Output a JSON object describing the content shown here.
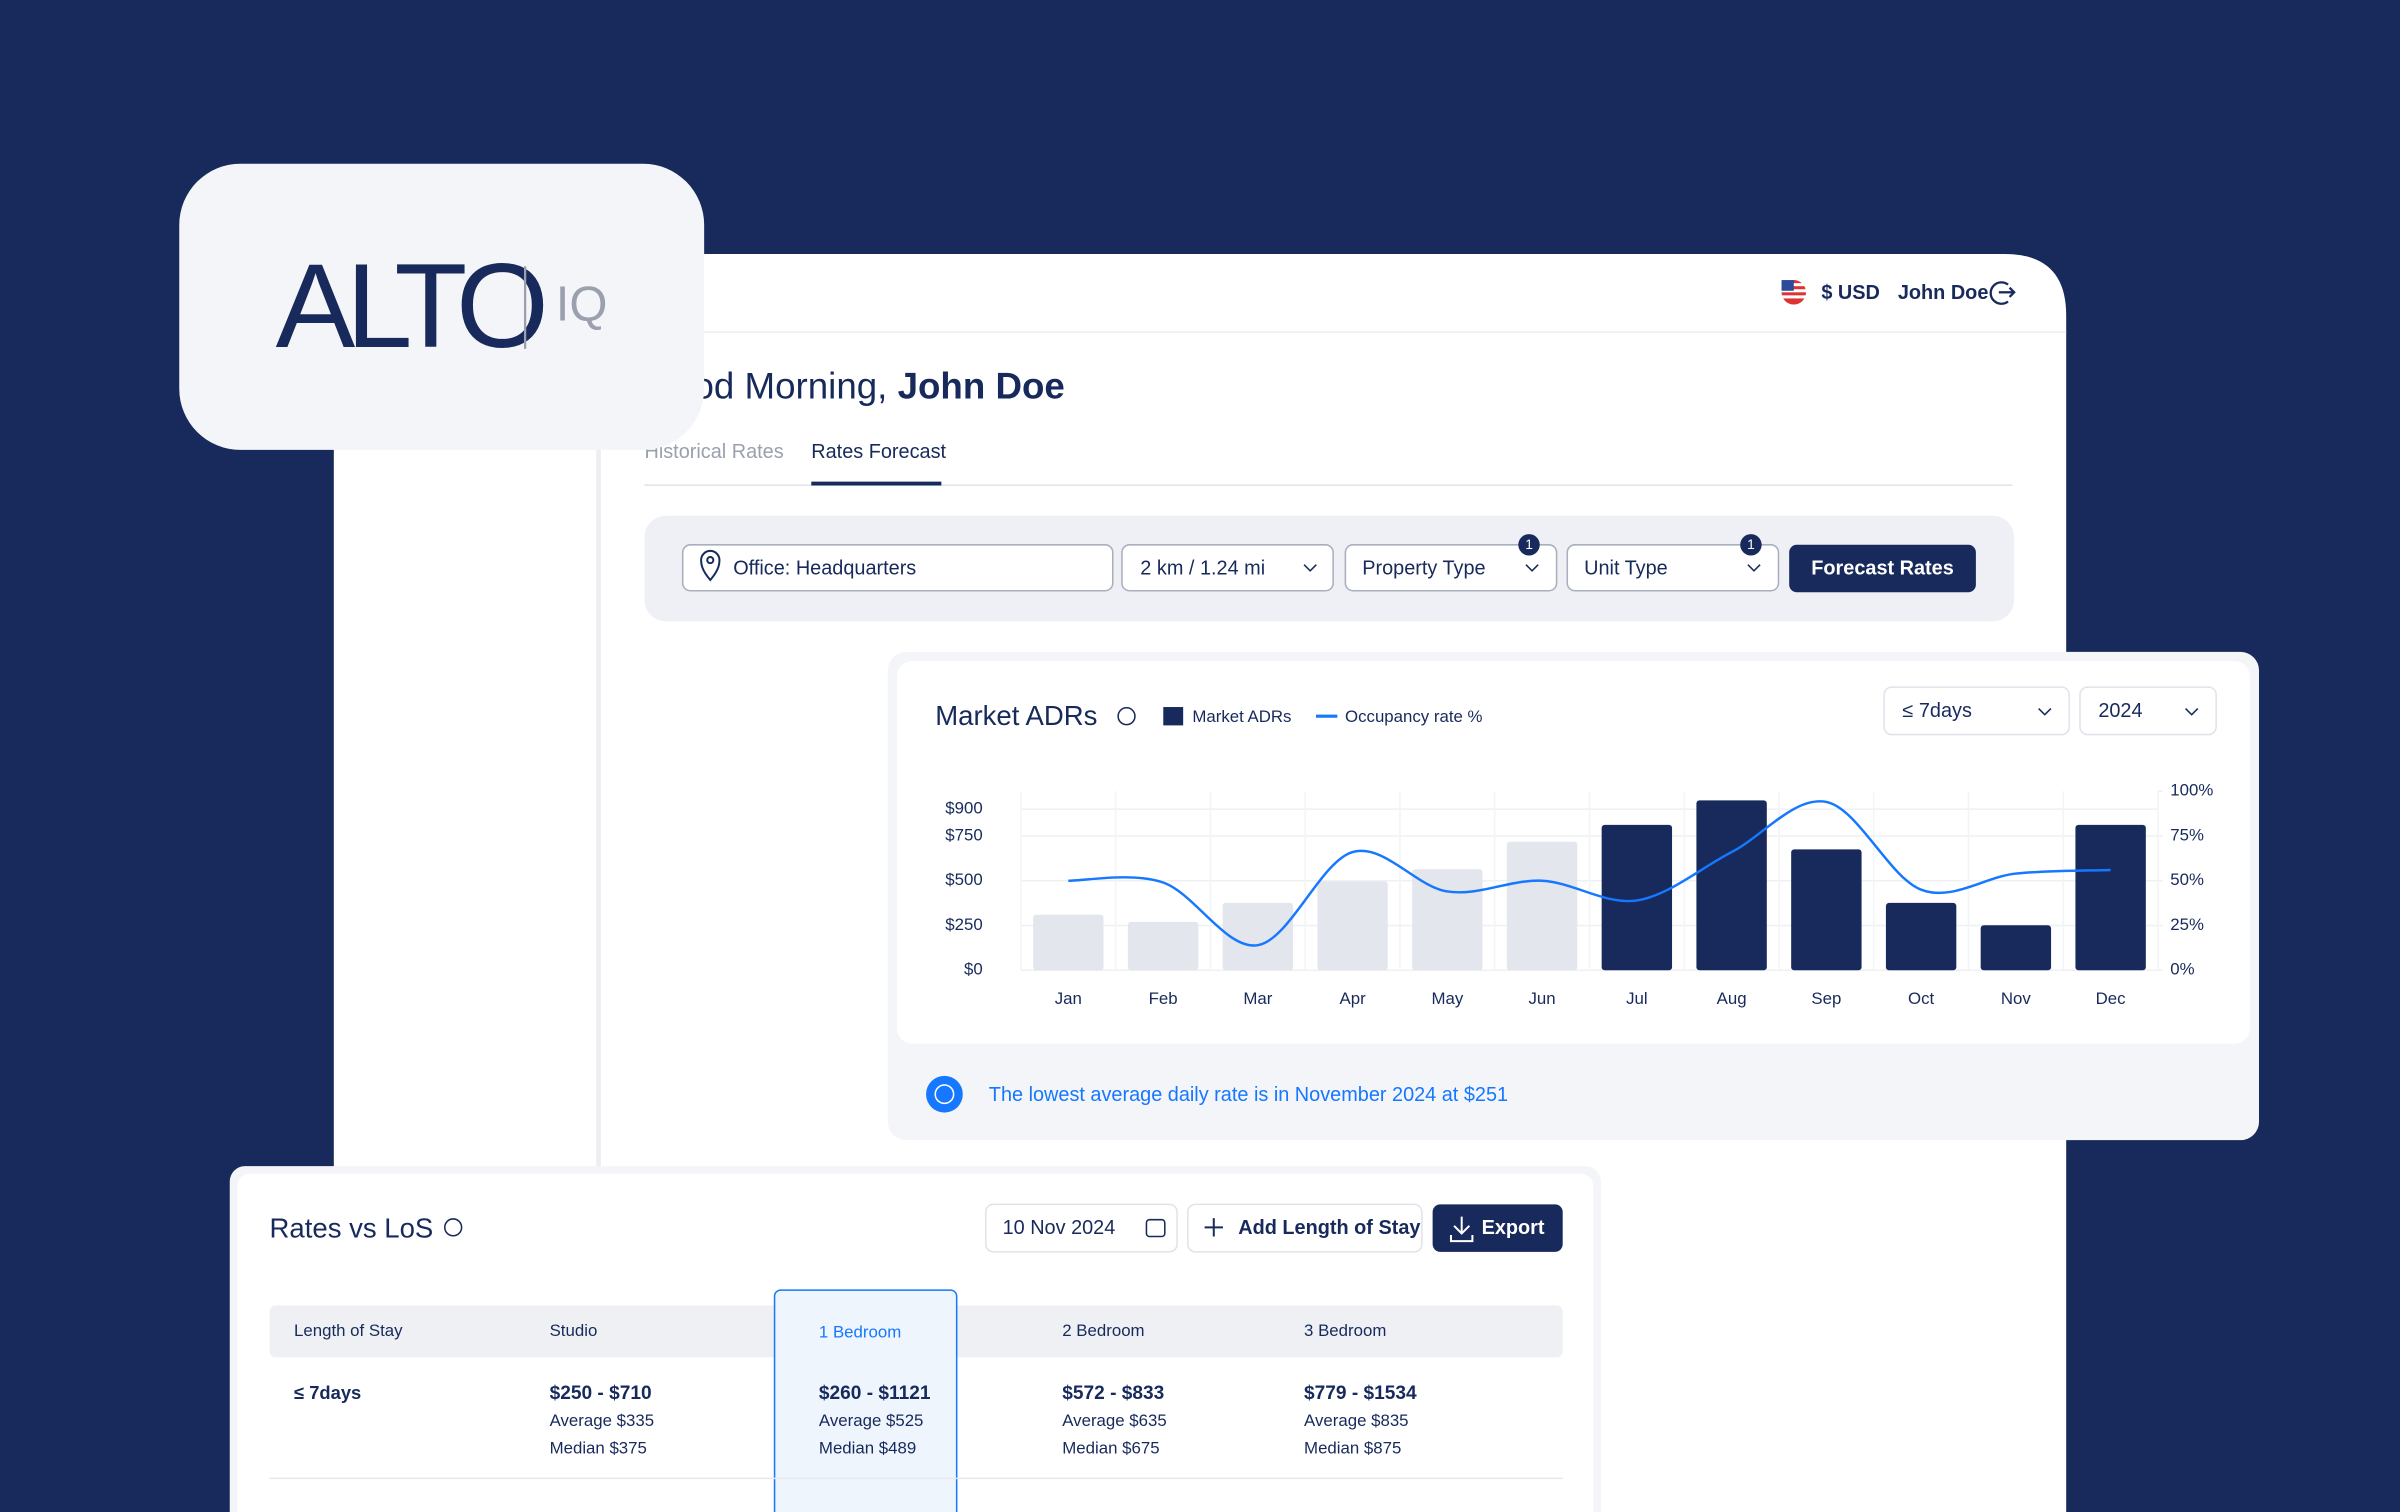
{
  "header": {
    "currency": "$ USD",
    "user": "John Doe"
  },
  "logo": {
    "name": "ALTO",
    "suffix": "IQ"
  },
  "greeting": {
    "text": "Good Morning,",
    "name": "John Doe"
  },
  "tabs": [
    "Historical Rates",
    "Rates Forecast"
  ],
  "filters": {
    "office": "Office: Headquarters",
    "radius": "2 km / 1.24 mi",
    "property_type": {
      "label": "Property Type",
      "badge": 1
    },
    "unit_type": {
      "label": "Unit Type",
      "badge": 1
    },
    "button": "Forecast Rates"
  },
  "chart_data": {
    "type": "bar",
    "title": "Market ADRs",
    "categories": [
      "Jan",
      "Feb",
      "Mar",
      "Apr",
      "May",
      "Jun",
      "Jul",
      "Aug",
      "Sep",
      "Oct",
      "Nov",
      "Dec"
    ],
    "series": [
      {
        "name": "Market ADRs",
        "color": "#172a5b",
        "colors": [
          "#e3e6ec",
          "#e3e6ec",
          "#e3e6ec",
          "#e3e6ec",
          "#e3e6ec",
          "#e3e6ec",
          "#172a5b",
          "#172a5b",
          "#172a5b",
          "#172a5b",
          "#172a5b",
          "#172a5b"
        ],
        "values": [
          310,
          270,
          376,
          496,
          564,
          718,
          812,
          949,
          675,
          376,
          251,
          812
        ]
      },
      {
        "name": "Occupancy rate %",
        "color": "#1677ff",
        "axis": "y2",
        "values": [
          50,
          49,
          14,
          66,
          44,
          50,
          39,
          66,
          94,
          45,
          54,
          56
        ]
      }
    ],
    "ylim": [
      0,
      1000
    ],
    "yticks": [
      {
        "value": 0,
        "label": "$0"
      },
      {
        "value": 250,
        "label": "$250"
      },
      {
        "value": 500,
        "label": "$500"
      },
      {
        "value": 750,
        "label": "$750"
      },
      {
        "value": 900,
        "label": "$900"
      }
    ],
    "y2lim": [
      0,
      100
    ],
    "y2ticks": [
      {
        "value": 0,
        "label": "0%"
      },
      {
        "value": 25,
        "label": "25%"
      },
      {
        "value": 50,
        "label": "50%"
      },
      {
        "value": 75,
        "label": "75%"
      },
      {
        "value": 100,
        "label": "100%"
      }
    ],
    "grid": true,
    "controls": {
      "period": "≤ 7days",
      "year": "2024"
    },
    "note": "The lowest average daily rate is in November 2024 at $251"
  },
  "rates_table": {
    "title": "Rates vs LoS",
    "date": "10 Nov 2024",
    "add_button": "Add Length of Stay",
    "export_button": "Export",
    "columns": [
      "Length of Stay",
      "Studio",
      "1 Bedroom",
      "2 Bedroom",
      "3 Bedroom"
    ],
    "rows": [
      [
        "≤ 7days",
        [
          "$250 - $710",
          "Average $335",
          "Median $375"
        ],
        [
          "$260 - $1121",
          "Average $525",
          "Median $489"
        ],
        [
          "$572 - $833",
          "Average $635",
          "Median $675"
        ],
        [
          "$779 - $1534",
          "Average $835",
          "Median $875"
        ]
      ]
    ]
  }
}
